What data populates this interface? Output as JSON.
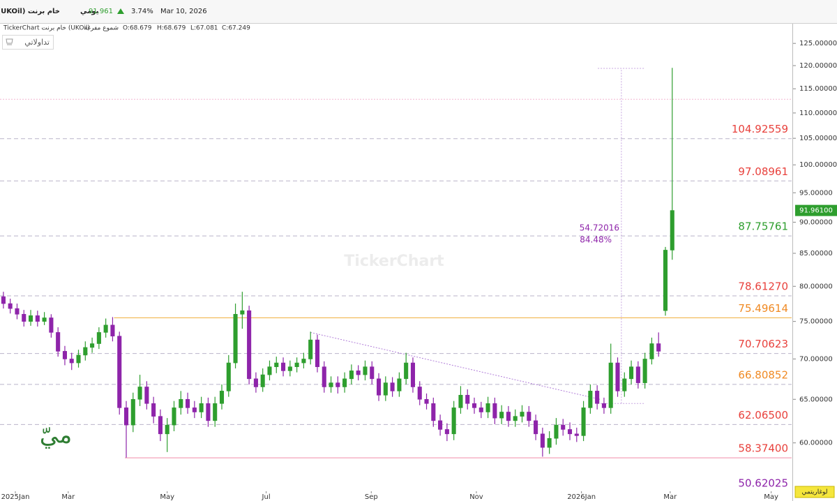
{
  "header": {
    "instrument": "خام برنت (UKOil)",
    "period": "يومي",
    "price": "91.961",
    "change": "3.74%",
    "date": "Mar 10, 2026"
  },
  "chart_info": {
    "source": "TickerChart خام برنت (UKOil)",
    "style": "شموع مفرغة",
    "open": "O:68.679",
    "high": "H:68.679",
    "low": "L:67.081",
    "close": "C:67.249"
  },
  "button": "تداولاتي",
  "watermark": "TickerChart",
  "logo": "ميّ",
  "scale_button": "لوغاريتمي",
  "chart_data": {
    "type": "candlestick",
    "log_scale": true,
    "up_color": "#2e9e2e",
    "down_color": "#8e24aa",
    "xlim": [
      -0.5,
      115.5
    ],
    "ylim": [
      54.9,
      129.6
    ],
    "xticks": [
      {
        "value": 1.75,
        "label": "2025Jan"
      },
      {
        "value": 9.5,
        "label": "Mar"
      },
      {
        "value": 24.0,
        "label": "May"
      },
      {
        "value": 38.5,
        "label": "Jul"
      },
      {
        "value": 53.9,
        "label": "Sep"
      },
      {
        "value": 69.3,
        "label": "Nov"
      },
      {
        "value": 84.7,
        "label": "2026Jan"
      },
      {
        "value": 97.7,
        "label": "Mar"
      },
      {
        "value": 112.5,
        "label": "May"
      }
    ],
    "yticks": [
      {
        "value": 60,
        "label": "60.00000"
      },
      {
        "value": 65,
        "label": "65.00000"
      },
      {
        "value": 70,
        "label": "70.00000"
      },
      {
        "value": 75,
        "label": "75.00000"
      },
      {
        "value": 80,
        "label": "80.00000"
      },
      {
        "value": 85,
        "label": "85.00000"
      },
      {
        "value": 90,
        "label": "90.00000"
      },
      {
        "value": 95,
        "label": "95.00000"
      },
      {
        "value": 100,
        "label": "100.00000"
      },
      {
        "value": 105,
        "label": "105.00000"
      },
      {
        "value": 110,
        "label": "110.00000"
      },
      {
        "value": 115,
        "label": "115.00000"
      },
      {
        "value": 120,
        "label": "120.00000"
      },
      {
        "value": 125,
        "label": "125.00000"
      }
    ],
    "last_price": {
      "value": 91.961,
      "label": "91.96100"
    },
    "levels": [
      {
        "value": 104.92559,
        "label": "104.92559",
        "color": "#e8413c"
      },
      {
        "value": 97.08961,
        "label": "97.08961",
        "color": "#e8413c"
      },
      {
        "value": 87.75761,
        "label": "87.75761",
        "color": "#2e9e2e"
      },
      {
        "value": 78.6127,
        "label": "78.61270",
        "color": "#e8413c"
      },
      {
        "value": 75.49614,
        "label": "75.49614",
        "color": "#f08a24",
        "from": 16.2,
        "line_color": "#f0b040"
      },
      {
        "value": 70.70623,
        "label": "70.70623",
        "color": "#e8413c"
      },
      {
        "value": 66.80852,
        "label": "66.80852",
        "color": "#f08a24"
      },
      {
        "value": 62.065,
        "label": "62.06500",
        "color": "#e8413c"
      },
      {
        "value": 58.374,
        "label": "58.37400",
        "color": "#e8413c",
        "from": 17.8,
        "line_color": "#f08aa8"
      },
      {
        "value": 50.62025,
        "label": "50.62025",
        "color": "#8e24aa"
      }
    ],
    "guides": [
      112.8
    ],
    "trendline": {
      "x": [
        45.0,
        87.4
      ],
      "y": [
        73.5,
        65.0
      ]
    },
    "measure": {
      "x": [
        87.1,
        94.0
      ],
      "y": [
        64.5,
        119.4
      ],
      "change": 54.72016,
      "percent": {
        "value": 84.48,
        "label": "84.48%"
      }
    },
    "candles": [
      [
        78.5,
        79.2,
        76.8,
        77.5
      ],
      [
        77.5,
        78.2,
        76.1,
        76.8
      ],
      [
        76.8,
        77.5,
        75.3,
        76
      ],
      [
        76,
        76.6,
        74.3,
        75
      ],
      [
        75,
        76.6,
        74.4,
        75.8
      ],
      [
        75.8,
        76.5,
        74.3,
        75
      ],
      [
        75,
        76.3,
        74.5,
        75.5
      ],
      [
        75.5,
        76,
        72.8,
        73.5
      ],
      [
        73.5,
        74.2,
        70.3,
        71
      ],
      [
        71,
        71.7,
        69.2,
        70
      ],
      [
        70,
        70.8,
        68.6,
        69.5
      ],
      [
        69.5,
        71.2,
        68.9,
        70.5
      ],
      [
        70.5,
        72.3,
        69.8,
        71.5
      ],
      [
        71.5,
        72.8,
        70.8,
        72
      ],
      [
        72,
        74.2,
        71.3,
        73.5
      ],
      [
        73.5,
        75.4,
        72.8,
        74.5
      ],
      [
        74.5,
        75.6,
        72.3,
        73
      ],
      [
        73,
        73.6,
        63.2,
        64
      ],
      [
        64,
        64.8,
        58.4,
        62
      ],
      [
        62,
        65.8,
        61.2,
        65
      ],
      [
        65,
        68,
        64.2,
        66.5
      ],
      [
        66.5,
        67.2,
        63.8,
        64.5
      ],
      [
        64.5,
        65.3,
        62.2,
        63
      ],
      [
        63,
        63.8,
        60.2,
        61
      ],
      [
        61,
        62.8,
        59,
        62
      ],
      [
        62,
        64.8,
        61.3,
        64
      ],
      [
        64,
        66,
        63.2,
        65
      ],
      [
        65,
        65.8,
        63.3,
        64
      ],
      [
        64,
        64.8,
        62.8,
        63.5
      ],
      [
        63.5,
        65.3,
        62.8,
        64.5
      ],
      [
        64.5,
        65.2,
        61.8,
        62.5
      ],
      [
        62.5,
        65.3,
        61.8,
        64.5
      ],
      [
        64.5,
        66.8,
        63.8,
        66
      ],
      [
        66,
        70.5,
        65.3,
        69.5
      ],
      [
        69.5,
        77.5,
        68.8,
        76
      ],
      [
        76,
        79.2,
        74,
        76.5
      ],
      [
        76.5,
        77.2,
        66.8,
        67.5
      ],
      [
        67.5,
        68.3,
        65.8,
        66.5
      ],
      [
        66.5,
        68.8,
        65.9,
        68
      ],
      [
        68,
        69.8,
        67.3,
        69
      ],
      [
        69,
        70.3,
        68.2,
        69.5
      ],
      [
        69.5,
        70.2,
        67.8,
        68.5
      ],
      [
        68.5,
        69.8,
        67.8,
        69
      ],
      [
        69,
        70.2,
        68.3,
        69.5
      ],
      [
        69.5,
        70.8,
        68.8,
        70
      ],
      [
        70,
        73.6,
        69.3,
        72.5
      ],
      [
        72.5,
        73.2,
        68.3,
        69
      ],
      [
        69,
        69.7,
        65.8,
        66.5
      ],
      [
        66.5,
        67.8,
        65.8,
        67
      ],
      [
        67,
        67.8,
        65.7,
        66.5
      ],
      [
        66.5,
        68.3,
        65.8,
        67.5
      ],
      [
        67.5,
        69.3,
        66.8,
        68.5
      ],
      [
        68.5,
        69.2,
        67.3,
        68
      ],
      [
        68,
        69.8,
        67.3,
        69
      ],
      [
        69,
        69.7,
        66.8,
        67.5
      ],
      [
        67.5,
        68.2,
        64.8,
        65.5
      ],
      [
        65.5,
        67.8,
        64.8,
        67
      ],
      [
        67,
        67.7,
        65.3,
        66
      ],
      [
        66,
        68.3,
        65.3,
        67.5
      ],
      [
        67.5,
        70.8,
        66.8,
        69.5
      ],
      [
        69.5,
        70.2,
        65.8,
        66.5
      ],
      [
        66.5,
        67.2,
        64.3,
        65
      ],
      [
        65,
        65.7,
        63.8,
        64.5
      ],
      [
        64.5,
        65.2,
        61.8,
        62.5
      ],
      [
        62.5,
        63.2,
        60.8,
        61.5
      ],
      [
        61.5,
        62.2,
        60.2,
        61
      ],
      [
        61,
        64.8,
        60.3,
        64
      ],
      [
        64,
        66.6,
        63.3,
        65.5
      ],
      [
        65.5,
        66.2,
        63.8,
        64.5
      ],
      [
        64.5,
        65.2,
        63.3,
        64
      ],
      [
        64,
        64.7,
        62.8,
        63.5
      ],
      [
        63.5,
        65.3,
        62.8,
        64.5
      ],
      [
        64.5,
        65.2,
        62.1,
        62.8
      ],
      [
        62.8,
        64.3,
        62.1,
        63.5
      ],
      [
        63.5,
        64.2,
        61.8,
        62.5
      ],
      [
        62.5,
        63.8,
        61.8,
        63
      ],
      [
        63,
        64.3,
        62.3,
        63.5
      ],
      [
        63.5,
        64.2,
        61.8,
        62.5
      ],
      [
        62.5,
        63.2,
        60.3,
        61
      ],
      [
        61,
        61.7,
        58.5,
        59.5
      ],
      [
        59.5,
        61.3,
        58.8,
        60.5
      ],
      [
        60.5,
        62.8,
        59.8,
        62
      ],
      [
        62,
        62.7,
        60.8,
        61.5
      ],
      [
        61.5,
        62.3,
        60.3,
        61
      ],
      [
        61,
        61.7,
        60.1,
        60.8
      ],
      [
        60.8,
        64.8,
        60.2,
        64
      ],
      [
        64,
        66.8,
        63.3,
        66
      ],
      [
        66,
        66.7,
        63.8,
        64.5
      ],
      [
        64.5,
        65.2,
        63.3,
        64
      ],
      [
        64,
        72,
        63.3,
        69.5
      ],
      [
        69.5,
        70.2,
        65.3,
        66
      ],
      [
        66,
        68.3,
        65.3,
        67.5
      ],
      [
        67.5,
        69.8,
        66.8,
        69
      ],
      [
        69,
        69.7,
        66.3,
        67
      ],
      [
        67,
        70.8,
        66.3,
        70
      ],
      [
        70,
        72.8,
        69.3,
        72
      ],
      [
        72,
        73.5,
        70.3,
        71
      ],
      [
        76.5,
        86,
        75.8,
        85.5
      ],
      [
        85.5,
        119.5,
        84,
        91.961
      ]
    ]
  }
}
